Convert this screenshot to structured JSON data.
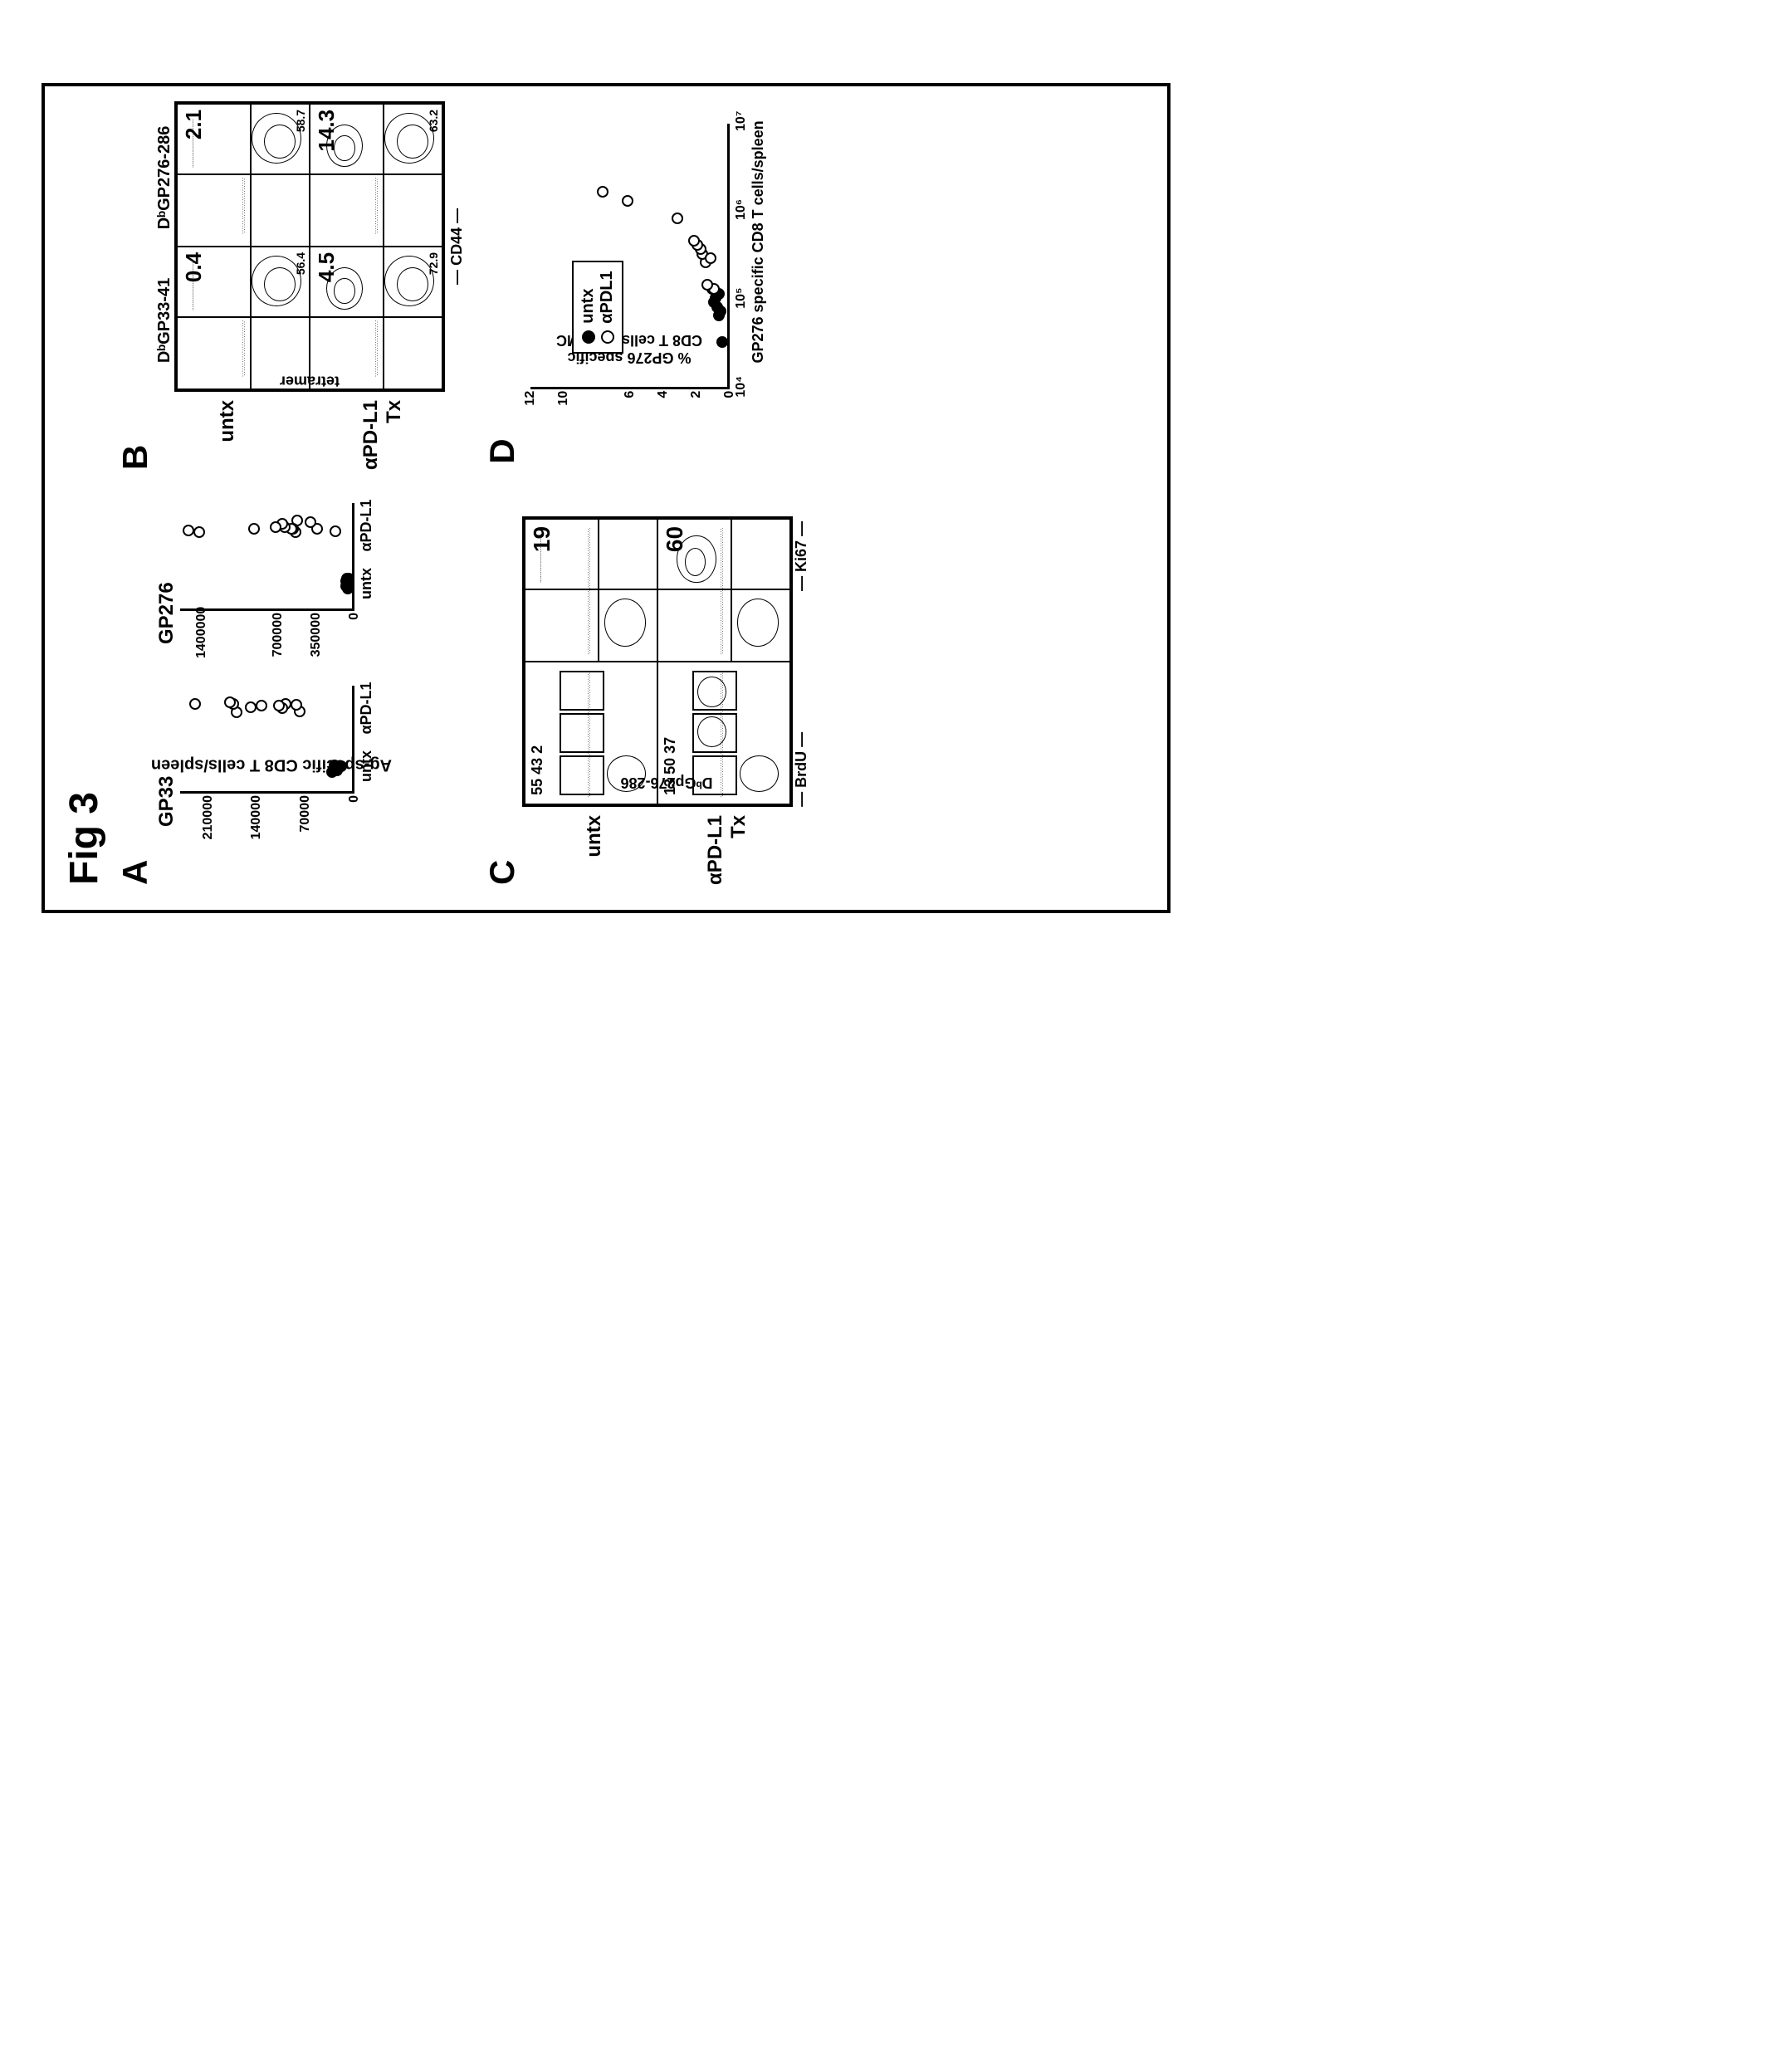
{
  "figure_label": "Fig 3",
  "panels": {
    "A": {
      "label": "A",
      "y_axis_label": "Ag-specific\nCD8 T cells/spleen",
      "plots": [
        {
          "title": "GP33",
          "yticks": [
            {
              "v": 0,
              "label": "0"
            },
            {
              "v": 70000,
              "label": "70000"
            },
            {
              "v": 140000,
              "label": "140000"
            },
            {
              "v": 210000,
              "label": "210000"
            }
          ],
          "ymax": 250000,
          "xcats": [
            "untx",
            "αPD-L1"
          ],
          "points": [
            {
              "x": 0,
              "y": 20000,
              "type": "filled"
            },
            {
              "x": 0,
              "y": 22000,
              "type": "filled"
            },
            {
              "x": 0,
              "y": 25000,
              "type": "filled"
            },
            {
              "x": 0,
              "y": 18000,
              "type": "filled"
            },
            {
              "x": 0,
              "y": 28000,
              "type": "filled"
            },
            {
              "x": 0,
              "y": 15000,
              "type": "filled"
            },
            {
              "x": 1,
              "y": 75000,
              "type": "open"
            },
            {
              "x": 1,
              "y": 80000,
              "type": "open"
            },
            {
              "x": 1,
              "y": 95000,
              "type": "open"
            },
            {
              "x": 1,
              "y": 100000,
              "type": "open"
            },
            {
              "x": 1,
              "y": 105000,
              "type": "open"
            },
            {
              "x": 1,
              "y": 130000,
              "type": "open"
            },
            {
              "x": 1,
              "y": 145000,
              "type": "open"
            },
            {
              "x": 1,
              "y": 165000,
              "type": "open"
            },
            {
              "x": 1,
              "y": 170000,
              "type": "open"
            },
            {
              "x": 1,
              "y": 175000,
              "type": "open"
            },
            {
              "x": 1,
              "y": 225000,
              "type": "open"
            }
          ]
        },
        {
          "title": "GP276",
          "yticks": [
            {
              "v": 0,
              "label": "0"
            },
            {
              "v": 350000,
              "label": "350000"
            },
            {
              "v": 700000,
              "label": "700000"
            },
            {
              "v": 1400000,
              "label": "1400000"
            }
          ],
          "ymax": 1600000,
          "xcats": [
            "untx",
            "αPD-L1"
          ],
          "points": [
            {
              "x": 0,
              "y": 30000,
              "type": "filled"
            },
            {
              "x": 0,
              "y": 40000,
              "type": "filled"
            },
            {
              "x": 0,
              "y": 45000,
              "type": "filled"
            },
            {
              "x": 0,
              "y": 50000,
              "type": "filled"
            },
            {
              "x": 0,
              "y": 55000,
              "type": "filled"
            },
            {
              "x": 0,
              "y": 48000,
              "type": "filled"
            },
            {
              "x": 1,
              "y": 150000,
              "type": "open"
            },
            {
              "x": 1,
              "y": 320000,
              "type": "open"
            },
            {
              "x": 1,
              "y": 380000,
              "type": "open"
            },
            {
              "x": 1,
              "y": 500000,
              "type": "open"
            },
            {
              "x": 1,
              "y": 520000,
              "type": "open"
            },
            {
              "x": 1,
              "y": 540000,
              "type": "open"
            },
            {
              "x": 1,
              "y": 560000,
              "type": "open"
            },
            {
              "x": 1,
              "y": 620000,
              "type": "open"
            },
            {
              "x": 1,
              "y": 640000,
              "type": "open"
            },
            {
              "x": 1,
              "y": 700000,
              "type": "open"
            },
            {
              "x": 1,
              "y": 900000,
              "type": "open"
            },
            {
              "x": 1,
              "y": 1400000,
              "type": "open"
            },
            {
              "x": 1,
              "y": 1500000,
              "type": "open"
            }
          ]
        }
      ]
    },
    "B": {
      "label": "B",
      "row_labels": [
        "untx",
        "αPD-L1\nTx"
      ],
      "col_labels": [
        "DᵇGP33-41",
        "DᵇGP276-286"
      ],
      "y_axis": "tetramer",
      "x_axis": "CD44",
      "cells": [
        {
          "pct": "0.4",
          "cd44": "56.4"
        },
        {
          "pct": "2.1",
          "cd44": "58.7"
        },
        {
          "pct": "4.5",
          "cd44": "72.9"
        },
        {
          "pct": "14.3",
          "cd44": "63.2"
        }
      ]
    },
    "C": {
      "label": "C",
      "row_labels": [
        "untx",
        "αPD-L1\nTx"
      ],
      "y_axis": "DᵇGp276-286",
      "x_labels": [
        "BrdU",
        "Ki67"
      ],
      "cells": [
        {
          "nums": "55 43  2"
        },
        {
          "big": "19"
        },
        {
          "nums": "13 50 37"
        },
        {
          "big": "60"
        }
      ]
    },
    "D": {
      "label": "D",
      "y_axis_label": "% GP276 specific\nCD8 T cells in PBMC",
      "x_axis_label": "GP276 specific CD8 T cells/spleen",
      "yticks": [
        {
          "v": 0,
          "label": "0"
        },
        {
          "v": 2,
          "label": "2"
        },
        {
          "v": 4,
          "label": "4"
        },
        {
          "v": 6,
          "label": "6"
        },
        {
          "v": 10,
          "label": "10"
        },
        {
          "v": 12,
          "label": "12"
        }
      ],
      "ymax": 12,
      "xticks": [
        {
          "v": 4,
          "label": "10⁴"
        },
        {
          "v": 5,
          "label": "10⁵"
        },
        {
          "v": 6,
          "label": "10⁶"
        },
        {
          "v": 7,
          "label": "10⁷"
        }
      ],
      "xmin": 4,
      "xmax": 7,
      "legend": [
        {
          "marker": "filled",
          "label": "untx"
        },
        {
          "marker": "open",
          "label": "αPDL1"
        }
      ],
      "points": [
        {
          "x": 4.5,
          "y": 0.3,
          "type": "filled"
        },
        {
          "x": 4.8,
          "y": 0.5,
          "type": "filled"
        },
        {
          "x": 4.9,
          "y": 0.6,
          "type": "filled"
        },
        {
          "x": 5.0,
          "y": 0.7,
          "type": "filled"
        },
        {
          "x": 4.95,
          "y": 0.8,
          "type": "filled"
        },
        {
          "x": 5.05,
          "y": 0.5,
          "type": "filled"
        },
        {
          "x": 5.1,
          "y": 0.9,
          "type": "filled"
        },
        {
          "x": 4.85,
          "y": 0.4,
          "type": "filled"
        },
        {
          "x": 5.1,
          "y": 0.8,
          "type": "open"
        },
        {
          "x": 5.15,
          "y": 1.2,
          "type": "open"
        },
        {
          "x": 5.4,
          "y": 1.3,
          "type": "open"
        },
        {
          "x": 5.5,
          "y": 1.5,
          "type": "open"
        },
        {
          "x": 5.45,
          "y": 1.0,
          "type": "open"
        },
        {
          "x": 5.55,
          "y": 1.6,
          "type": "open"
        },
        {
          "x": 5.6,
          "y": 1.8,
          "type": "open"
        },
        {
          "x": 5.65,
          "y": 2.0,
          "type": "open"
        },
        {
          "x": 5.9,
          "y": 3.0,
          "type": "open"
        },
        {
          "x": 6.1,
          "y": 6.0,
          "type": "open"
        },
        {
          "x": 6.2,
          "y": 7.5,
          "type": "open"
        }
      ]
    }
  },
  "colors": {
    "stroke": "#000000",
    "bg": "#ffffff"
  }
}
